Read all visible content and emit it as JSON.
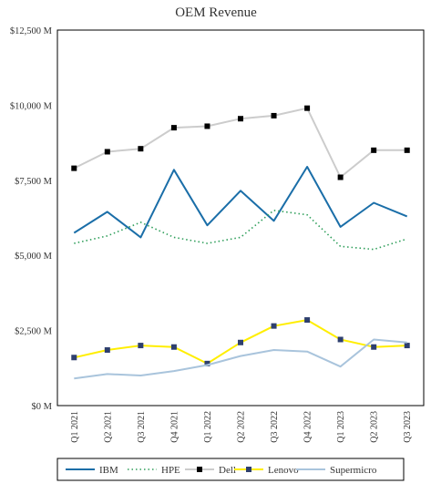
{
  "chart_data": {
    "type": "line",
    "title": "OEM Revenue",
    "xlabel": "",
    "ylabel": "",
    "ylim": [
      0,
      12500
    ],
    "yticks": [
      0,
      2500,
      5000,
      7500,
      10000,
      12500
    ],
    "ytick_labels": [
      "$0 M",
      "$2,500 M",
      "$5,000 M",
      "$7,500 M",
      "$10,000 M",
      "$12,500 M"
    ],
    "categories": [
      "Q1 2021",
      "Q2 2021",
      "Q3 2021",
      "Q4 2021",
      "Q1 2022",
      "Q2 2022",
      "Q3 2022",
      "Q4 2022",
      "Q1 2023",
      "Q2 2023",
      "Q3 2023"
    ],
    "grid": false,
    "legend_position": "bottom",
    "series": [
      {
        "name": "IBM",
        "color": "#1a6ea8",
        "style": "solid",
        "marker": "none",
        "values": [
          5750,
          6450,
          5600,
          7850,
          6000,
          7150,
          6150,
          7950,
          5950,
          6750,
          6300
        ]
      },
      {
        "name": "HPE",
        "color": "#2e9e5a",
        "style": "dotted",
        "marker": "none",
        "values": [
          5400,
          5650,
          6100,
          5600,
          5400,
          5600,
          6500,
          6350,
          5300,
          5200,
          5550
        ]
      },
      {
        "name": "Dell",
        "color": "#cccccc",
        "style": "solid",
        "marker": "square",
        "marker_color": "#000000",
        "values": [
          7900,
          8450,
          8550,
          9250,
          9300,
          9550,
          9650,
          9900,
          7600,
          8500,
          8500
        ]
      },
      {
        "name": "Lenovo",
        "color": "#ffee00",
        "style": "solid",
        "marker": "square",
        "marker_color": "#2e3f6e",
        "values": [
          1600,
          1850,
          2000,
          1950,
          1400,
          2100,
          2650,
          2850,
          2200,
          1950,
          2000
        ]
      },
      {
        "name": "Supermicro",
        "color": "#a9c4dc",
        "style": "solid",
        "marker": "none",
        "values": [
          900,
          1050,
          1000,
          1150,
          1350,
          1650,
          1850,
          1800,
          1300,
          2200,
          2100
        ]
      }
    ]
  }
}
